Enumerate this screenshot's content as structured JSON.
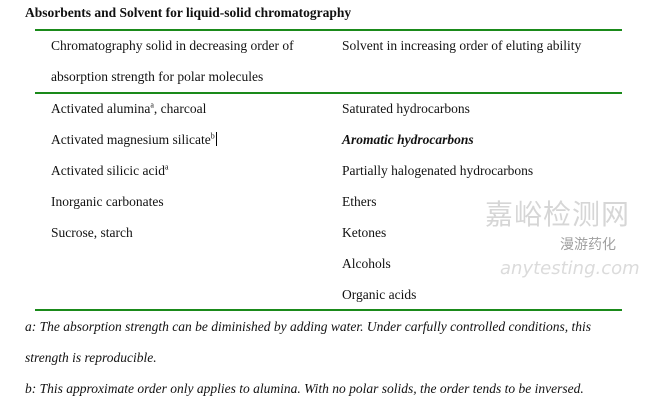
{
  "title": "Absorbents and Solvent for liquid-solid chromatography",
  "header": {
    "left_line1": "Chromatography   solid   in   decreasing   order   of",
    "left_line2": "absorption strength for polar molecules",
    "right": "Solvent in increasing order of eluting ability"
  },
  "solids": [
    {
      "text": "Activated alumina",
      "sup": "a",
      "suffix": ", charcoal"
    },
    {
      "text": "Activated magnesium silicate",
      "sup": "b",
      "suffix": ""
    },
    {
      "text": "Activated silicic acid",
      "sup": "a",
      "suffix": ""
    },
    {
      "text": "Inorganic carbonates",
      "sup": "",
      "suffix": ""
    },
    {
      "text": "Sucrose, starch",
      "sup": "",
      "suffix": ""
    }
  ],
  "solvents": [
    "Saturated hydrocarbons",
    "Aromatic hydrocarbons",
    "Partially halogenated hydrocarbons",
    "Ethers",
    "Ketones",
    "Alcohols",
    "Organic acids"
  ],
  "footnotes": {
    "a_line1": "a: The absorption strength can be diminished by adding water. Under carfully controlled conditions, this",
    "a_line2": "strength is reproducible.",
    "b": "b: This approximate order only applies to alumina. With no polar solids, the order tends to be inversed."
  },
  "watermark": {
    "main": "嘉峪检测网",
    "sub": "漫游药化",
    "url": "anytesting.com"
  },
  "colors": {
    "rule": "#1a8a1a"
  }
}
